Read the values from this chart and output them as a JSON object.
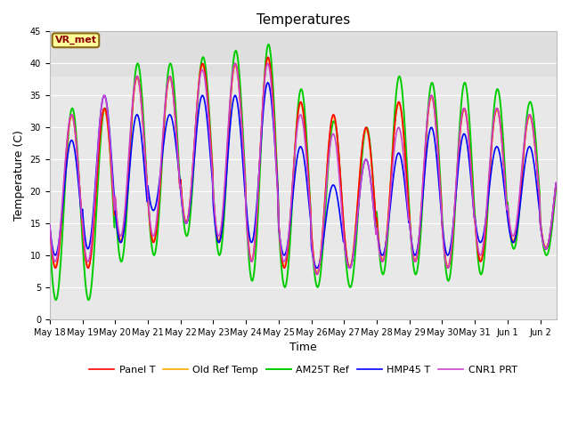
{
  "title": "Temperatures",
  "xlabel": "Time",
  "ylabel": "Temperature (C)",
  "ylim": [
    0,
    45
  ],
  "x_tick_labels": [
    "May 18",
    "May 19",
    "May 20",
    "May 21",
    "May 22",
    "May 23",
    "May 24",
    "May 25",
    "May 26",
    "May 27",
    "May 28",
    "May 29",
    "May 30",
    "May 31",
    "Jun 1",
    "Jun 2"
  ],
  "series_order": [
    "Panel T",
    "Old Ref Temp",
    "AM25T Ref",
    "HMP45 T",
    "CNR1 PRT"
  ],
  "series": {
    "Panel T": {
      "color": "#ff0000",
      "lw": 1.2,
      "zorder": 3
    },
    "Old Ref Temp": {
      "color": "#ffa500",
      "lw": 1.2,
      "zorder": 2
    },
    "AM25T Ref": {
      "color": "#00cc00",
      "lw": 1.4,
      "zorder": 1
    },
    "HMP45 T": {
      "color": "#0000ff",
      "lw": 1.2,
      "zorder": 4
    },
    "CNR1 PRT": {
      "color": "#cc44cc",
      "lw": 1.2,
      "zorder": 5
    }
  },
  "annotation_text": "VR_met",
  "fig_bg_color": "#ffffff",
  "plot_bg_color": "#e8e8e8",
  "upper_band_color": "#d8d8d8",
  "grid_color": "#ffffff",
  "title_fontsize": 11,
  "axis_label_fontsize": 9,
  "tick_fontsize": 7,
  "legend_fontsize": 8,
  "annot_fontsize": 8,
  "figsize": [
    6.4,
    4.8
  ],
  "dpi": 100,
  "yticks": [
    0,
    5,
    10,
    15,
    20,
    25,
    30,
    35,
    40,
    45
  ]
}
